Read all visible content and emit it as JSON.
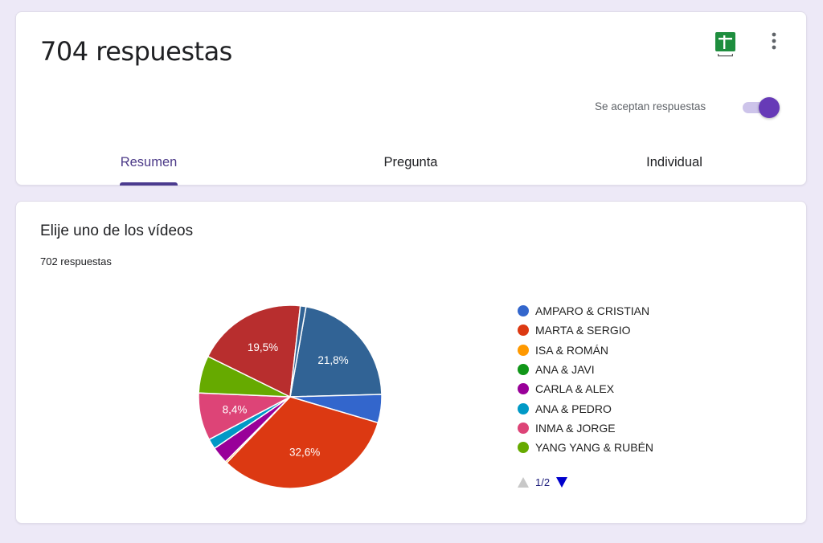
{
  "header": {
    "title": "704 respuestas",
    "accepting_label": "Se aceptan respuestas",
    "accepting_on": true,
    "icons": [
      "sheets-icon",
      "more-vert-icon"
    ],
    "tabs": [
      {
        "label": "Resumen",
        "active": true
      },
      {
        "label": "Pregunta",
        "active": false
      },
      {
        "label": "Individual",
        "active": false
      }
    ]
  },
  "question": {
    "title": "Elije uno de los vídeos",
    "count": "702 respuestas"
  },
  "legend": {
    "items": [
      {
        "label": "AMPARO & CRISTIAN",
        "color": "#3366cc"
      },
      {
        "label": "MARTA & SERGIO",
        "color": "#dc3912"
      },
      {
        "label": "ISA & ROMÁN",
        "color": "#ff9900"
      },
      {
        "label": "ANA & JAVI",
        "color": "#109618"
      },
      {
        "label": "CARLA & ALEX",
        "color": "#990099"
      },
      {
        "label": "ANA & PEDRO",
        "color": "#0099c6"
      },
      {
        "label": "INMA & JORGE",
        "color": "#dd4477"
      },
      {
        "label": "YANG YANG & RUBÉN",
        "color": "#66aa00"
      }
    ],
    "page": "1/2"
  },
  "chart_data": {
    "type": "pie",
    "title": "Elije uno de los vídeos",
    "subtitle": "702 respuestas",
    "start_angle_deg": 10,
    "slices": [
      {
        "label": "(page 2 option)",
        "value": 21.8,
        "color": "#316395",
        "data_label": "21,8%"
      },
      {
        "label": "AMPARO & CRISTIAN",
        "value": 5.0,
        "color": "#3366cc",
        "data_label": ""
      },
      {
        "label": "MARTA & SERGIO",
        "value": 32.6,
        "color": "#dc3912",
        "data_label": "32,6%"
      },
      {
        "label": "ISA & ROMÁN",
        "value": 0.3,
        "color": "#ff9900",
        "data_label": ""
      },
      {
        "label": "ANA & JAVI",
        "value": 0.0,
        "color": "#109618",
        "data_label": ""
      },
      {
        "label": "CARLA & ALEX",
        "value": 3.0,
        "color": "#990099",
        "data_label": ""
      },
      {
        "label": "ANA & PEDRO",
        "value": 1.8,
        "color": "#0099c6",
        "data_label": ""
      },
      {
        "label": "INMA & JORGE",
        "value": 8.4,
        "color": "#dd4477",
        "data_label": "8,4%"
      },
      {
        "label": "YANG YANG & RUBÉN",
        "value": 6.6,
        "color": "#66aa00",
        "data_label": ""
      },
      {
        "label": "(page 2 option)",
        "value": 19.5,
        "color": "#b82e2e",
        "data_label": "19,5%"
      },
      {
        "label": "(other)",
        "value": 1.0,
        "color": "#316395",
        "data_label": ""
      }
    ],
    "legend_position": "right",
    "legend_page": "1/2"
  }
}
